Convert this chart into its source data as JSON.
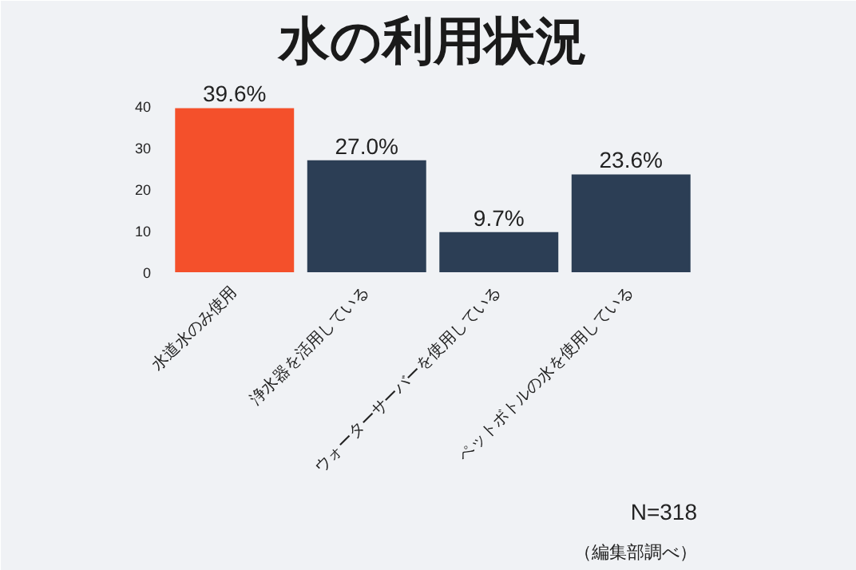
{
  "chart_data": {
    "type": "bar",
    "title": "水の利用状況",
    "categories": [
      "水道水のみ使用",
      "浄水器を活用している",
      "ウォーターサーバーを使用している",
      "ペットボトルの水を使用している"
    ],
    "values": [
      39.6,
      27.0,
      9.7,
      23.6
    ],
    "colors": [
      "#f4502b",
      "#2c3e55",
      "#2c3e55",
      "#2c3e55"
    ],
    "value_labels": [
      "39.6%",
      "27.0%",
      "9.7%",
      "23.6%"
    ],
    "ylim": [
      0,
      47
    ],
    "yticks": [
      0,
      10,
      20,
      30,
      40
    ],
    "grid": false,
    "annotations": [
      "N=318",
      "（編集部調べ）"
    ]
  }
}
